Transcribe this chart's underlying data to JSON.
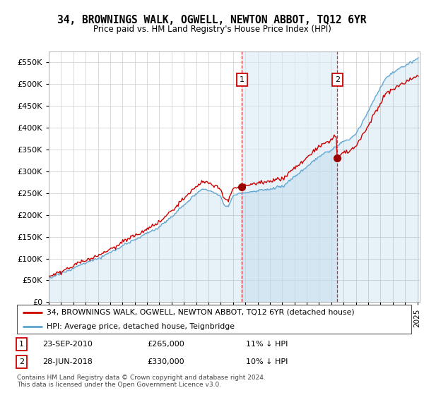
{
  "title": "34, BROWNINGS WALK, OGWELL, NEWTON ABBOT, TQ12 6YR",
  "subtitle": "Price paid vs. HM Land Registry's House Price Index (HPI)",
  "ylim": [
    0,
    575000
  ],
  "yticks": [
    0,
    50000,
    100000,
    150000,
    200000,
    250000,
    300000,
    350000,
    400000,
    450000,
    500000,
    550000
  ],
  "sale1_date": 2010.73,
  "sale1_price": 265000,
  "sale2_date": 2018.49,
  "sale2_price": 330000,
  "hpi_color": "#5ba3d0",
  "hpi_fill": "#daeaf5",
  "price_color": "#cc0000",
  "marker_color": "#990000",
  "legend_entries": [
    "34, BROWNINGS WALK, OGWELL, NEWTON ABBOT, TQ12 6YR (detached house)",
    "HPI: Average price, detached house, Teignbridge"
  ],
  "copyright": "Contains HM Land Registry data © Crown copyright and database right 2024.\nThis data is licensed under the Open Government Licence v3.0.",
  "background_color": "#ffffff",
  "grid_color": "#cccccc"
}
